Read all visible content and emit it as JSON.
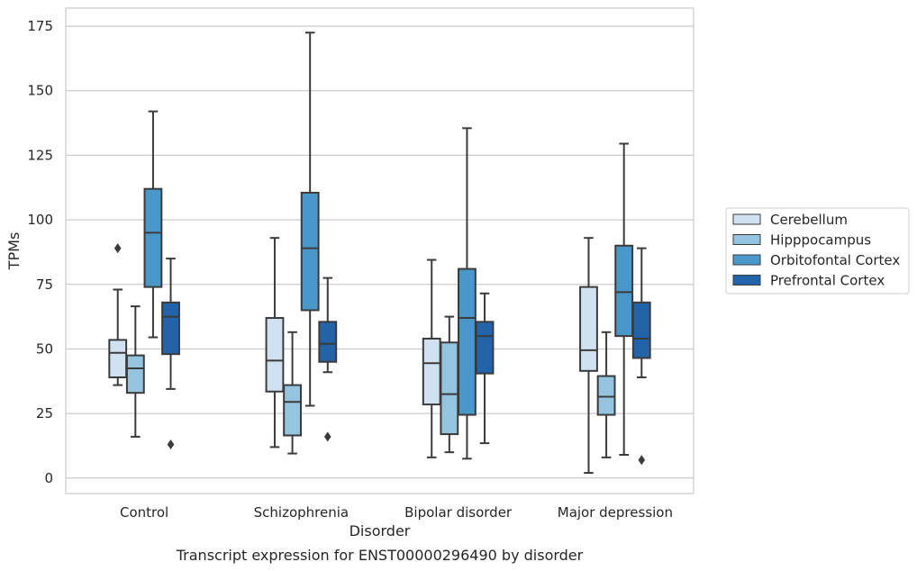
{
  "caption": "Transcript expression for ENST00000296490 by disorder",
  "chart_data": {
    "type": "box",
    "xlabel": "Disorder",
    "ylabel": "TPMs",
    "ylim": [
      -6,
      182
    ],
    "yticks": [
      0,
      25,
      50,
      75,
      100,
      125,
      150,
      175
    ],
    "grid": "horizontal",
    "legend_position": "right",
    "categories": [
      "Control",
      "Schizophrenia",
      "Bipolar disorder",
      "Major depression"
    ],
    "series": [
      {
        "name": "Cerebellum",
        "color": "#d0e1f2",
        "boxes": [
          {
            "whisker_low": 36,
            "q1": 39,
            "median": 48.5,
            "q3": 53.5,
            "whisker_high": 73,
            "outliers": [
              89
            ]
          },
          {
            "whisker_low": 12,
            "q1": 33.5,
            "median": 45.5,
            "q3": 62,
            "whisker_high": 93,
            "outliers": []
          },
          {
            "whisker_low": 8,
            "q1": 28.5,
            "median": 44.5,
            "q3": 54,
            "whisker_high": 84.5,
            "outliers": []
          },
          {
            "whisker_low": 2,
            "q1": 41.5,
            "median": 49.5,
            "q3": 74,
            "whisker_high": 93,
            "outliers": []
          }
        ]
      },
      {
        "name": "Hipppocampus",
        "color": "#94c4df",
        "boxes": [
          {
            "whisker_low": 16,
            "q1": 33,
            "median": 42.5,
            "q3": 47.5,
            "whisker_high": 66.5,
            "outliers": []
          },
          {
            "whisker_low": 9.5,
            "q1": 16.5,
            "median": 29.5,
            "q3": 36,
            "whisker_high": 56.5,
            "outliers": []
          },
          {
            "whisker_low": 10,
            "q1": 17,
            "median": 32.5,
            "q3": 52.5,
            "whisker_high": 62.5,
            "outliers": []
          },
          {
            "whisker_low": 8,
            "q1": 24.5,
            "median": 31.5,
            "q3": 39.5,
            "whisker_high": 56.5,
            "outliers": []
          }
        ]
      },
      {
        "name": "Orbitofontal Cortex",
        "color": "#4a98c9",
        "boxes": [
          {
            "whisker_low": 54.5,
            "q1": 74,
            "median": 95,
            "q3": 112,
            "whisker_high": 142,
            "outliers": []
          },
          {
            "whisker_low": 28,
            "q1": 65,
            "median": 89,
            "q3": 110.5,
            "whisker_high": 172.5,
            "outliers": []
          },
          {
            "whisker_low": 7.5,
            "q1": 24.5,
            "median": 62,
            "q3": 81,
            "whisker_high": 135.5,
            "outliers": []
          },
          {
            "whisker_low": 9,
            "q1": 55,
            "median": 72,
            "q3": 90,
            "whisker_high": 129.5,
            "outliers": []
          }
        ]
      },
      {
        "name": "Prefrontal Cortex",
        "color": "#2363a9",
        "boxes": [
          {
            "whisker_low": 34.5,
            "q1": 48,
            "median": 62.5,
            "q3": 68,
            "whisker_high": 85,
            "outliers": [
              13
            ]
          },
          {
            "whisker_low": 41,
            "q1": 45,
            "median": 52,
            "q3": 60.5,
            "whisker_high": 77.5,
            "outliers": [
              16
            ]
          },
          {
            "whisker_low": 13.5,
            "q1": 40.5,
            "median": 55,
            "q3": 60.5,
            "whisker_high": 71.5,
            "outliers": []
          },
          {
            "whisker_low": 39,
            "q1": 46.5,
            "median": 54,
            "q3": 68,
            "whisker_high": 89,
            "outliers": [
              7
            ]
          }
        ]
      }
    ]
  }
}
